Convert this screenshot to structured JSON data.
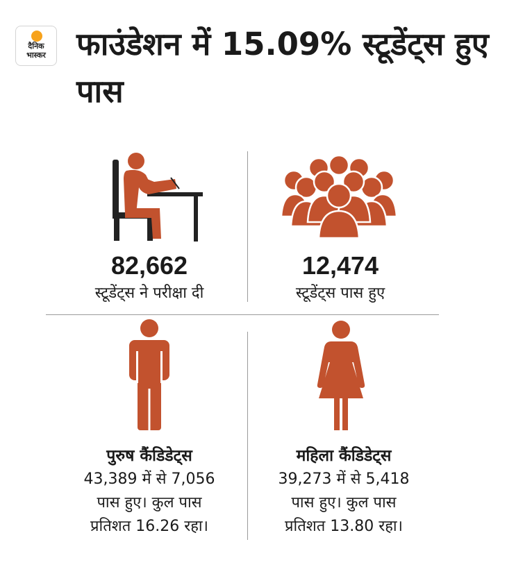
{
  "logo": {
    "line1": "दैनिक",
    "line2": "भास्कर"
  },
  "title": "फाउंडेशन में 15.09% स्टूडेंट्स हुए पास",
  "stats": [
    {
      "value": "82,662",
      "label": "स्टूडेंट्स ने परीक्षा दी",
      "icon": "student-writing-icon"
    },
    {
      "value": "12,474",
      "label": "स्टूडेंट्स पास हुए",
      "icon": "group-people-icon"
    }
  ],
  "male": {
    "heading": "पुरुष कैंडिडेट्स",
    "line1": "43,389 में से 7,056",
    "line2": "पास हुए। कुल पास",
    "line3": "प्रतिशत 16.26 रहा।",
    "icon": "male-figure-icon"
  },
  "female": {
    "heading": "महिला कैंडिडेट्स",
    "line1": "39,273 में से 5,418",
    "line2": "पास हुए। कुल पास",
    "line3": "प्रतिशत 13.80 रहा।",
    "icon": "female-figure-icon"
  },
  "colors": {
    "accent": "#c2522e",
    "chair": "#222222",
    "text": "#1a1a1a",
    "divider": "#9a9a9a",
    "logo_sun": "#f7a21b"
  }
}
